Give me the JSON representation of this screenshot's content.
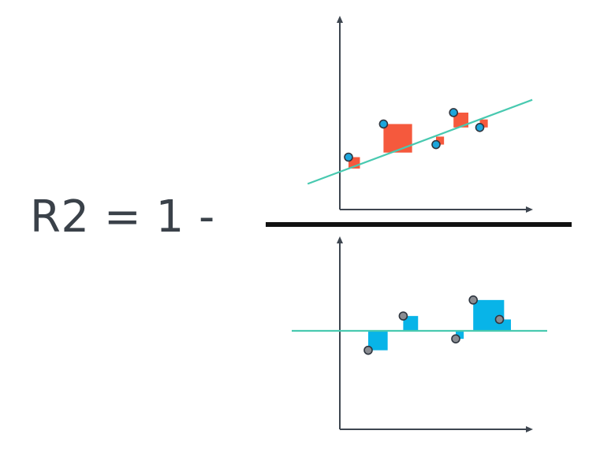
{
  "formula": {
    "text": "R2 = 1 -"
  },
  "colors": {
    "axis": "#3e4650",
    "fit_line": "#48c9b0",
    "regression_square": "#f5593d",
    "mean_square": "#08b4e8",
    "point_top": "#1ca6dc",
    "point_bottom": "#8b8d92",
    "point_stroke": "#2f3640",
    "fraction_bar": "#111111",
    "text": "#3a4149"
  },
  "numerator_plot": {
    "description_icon": "regression-squared-errors",
    "points": [
      {
        "x": 1.0,
        "y": 3.6,
        "fit": 2.6
      },
      {
        "x": 2.2,
        "y": 6.5,
        "fit": 4.0
      },
      {
        "x": 4.0,
        "y": 4.7,
        "fit": 5.4
      },
      {
        "x": 4.6,
        "y": 7.5,
        "fit": 6.2
      },
      {
        "x": 5.5,
        "y": 6.2,
        "fit": 6.9
      }
    ]
  },
  "denominator_plot": {
    "description_icon": "mean-squared-errors",
    "points": [
      {
        "x": 1.0,
        "y": -1.7,
        "mean": 0
      },
      {
        "x": 2.2,
        "y": 1.3,
        "mean": 0
      },
      {
        "x": 4.0,
        "y": -0.7,
        "mean": 0
      },
      {
        "x": 4.6,
        "y": 2.7,
        "mean": 0
      },
      {
        "x": 5.5,
        "y": 1.0,
        "mean": 0
      }
    ]
  }
}
